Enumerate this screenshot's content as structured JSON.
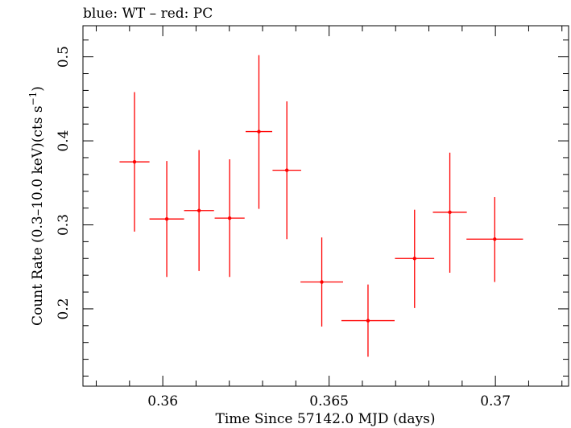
{
  "chart_data": {
    "type": "scatter",
    "title": "blue: WT – red: PC",
    "xlabel": "Time Since 57142.0 MJD (days)",
    "ylabel": "Count Rate (0.3–10.0 keV)(cts s",
    "ylabel_sup": "−1",
    "ylabel_tail": ")",
    "xlim": [
      0.3576,
      0.3722
    ],
    "ylim": [
      0.108,
      0.537
    ],
    "x_ticks": [
      0.36,
      0.365,
      0.37
    ],
    "x_tick_labels": [
      "0.36",
      "0.365",
      "0.37"
    ],
    "y_ticks": [
      0.2,
      0.3,
      0.4,
      0.5
    ],
    "y_tick_labels": [
      "0.2",
      "0.3",
      "0.4",
      "0.5"
    ],
    "grid": false,
    "series": [
      {
        "color": "#ff0000",
        "points": [
          {
            "x": 0.35915,
            "xerr": 0.00045,
            "y": 0.375,
            "yerr_lo": 0.083,
            "yerr_hi": 0.083
          },
          {
            "x": 0.36012,
            "xerr": 0.00052,
            "y": 0.307,
            "yerr_lo": 0.069,
            "yerr_hi": 0.069
          },
          {
            "x": 0.36109,
            "xerr": 0.00045,
            "y": 0.317,
            "yerr_lo": 0.072,
            "yerr_hi": 0.072
          },
          {
            "x": 0.36201,
            "xerr": 0.00045,
            "y": 0.308,
            "yerr_lo": 0.07,
            "yerr_hi": 0.07
          },
          {
            "x": 0.36289,
            "xerr": 0.0004,
            "y": 0.411,
            "yerr_lo": 0.092,
            "yerr_hi": 0.091
          },
          {
            "x": 0.36373,
            "xerr": 0.00043,
            "y": 0.365,
            "yerr_lo": 0.082,
            "yerr_hi": 0.082
          },
          {
            "x": 0.36478,
            "xerr": 0.00064,
            "y": 0.232,
            "yerr_lo": 0.053,
            "yerr_hi": 0.053
          },
          {
            "x": 0.36617,
            "xerr": 0.0008,
            "y": 0.186,
            "yerr_lo": 0.043,
            "yerr_hi": 0.043
          },
          {
            "x": 0.36757,
            "xerr": 0.00059,
            "y": 0.26,
            "yerr_lo": 0.059,
            "yerr_hi": 0.058
          },
          {
            "x": 0.36863,
            "xerr": 0.00051,
            "y": 0.315,
            "yerr_lo": 0.072,
            "yerr_hi": 0.071
          },
          {
            "x": 0.36998,
            "xerr": 0.00085,
            "y": 0.283,
            "yerr_lo": 0.051,
            "yerr_hi": 0.05
          }
        ]
      }
    ]
  }
}
